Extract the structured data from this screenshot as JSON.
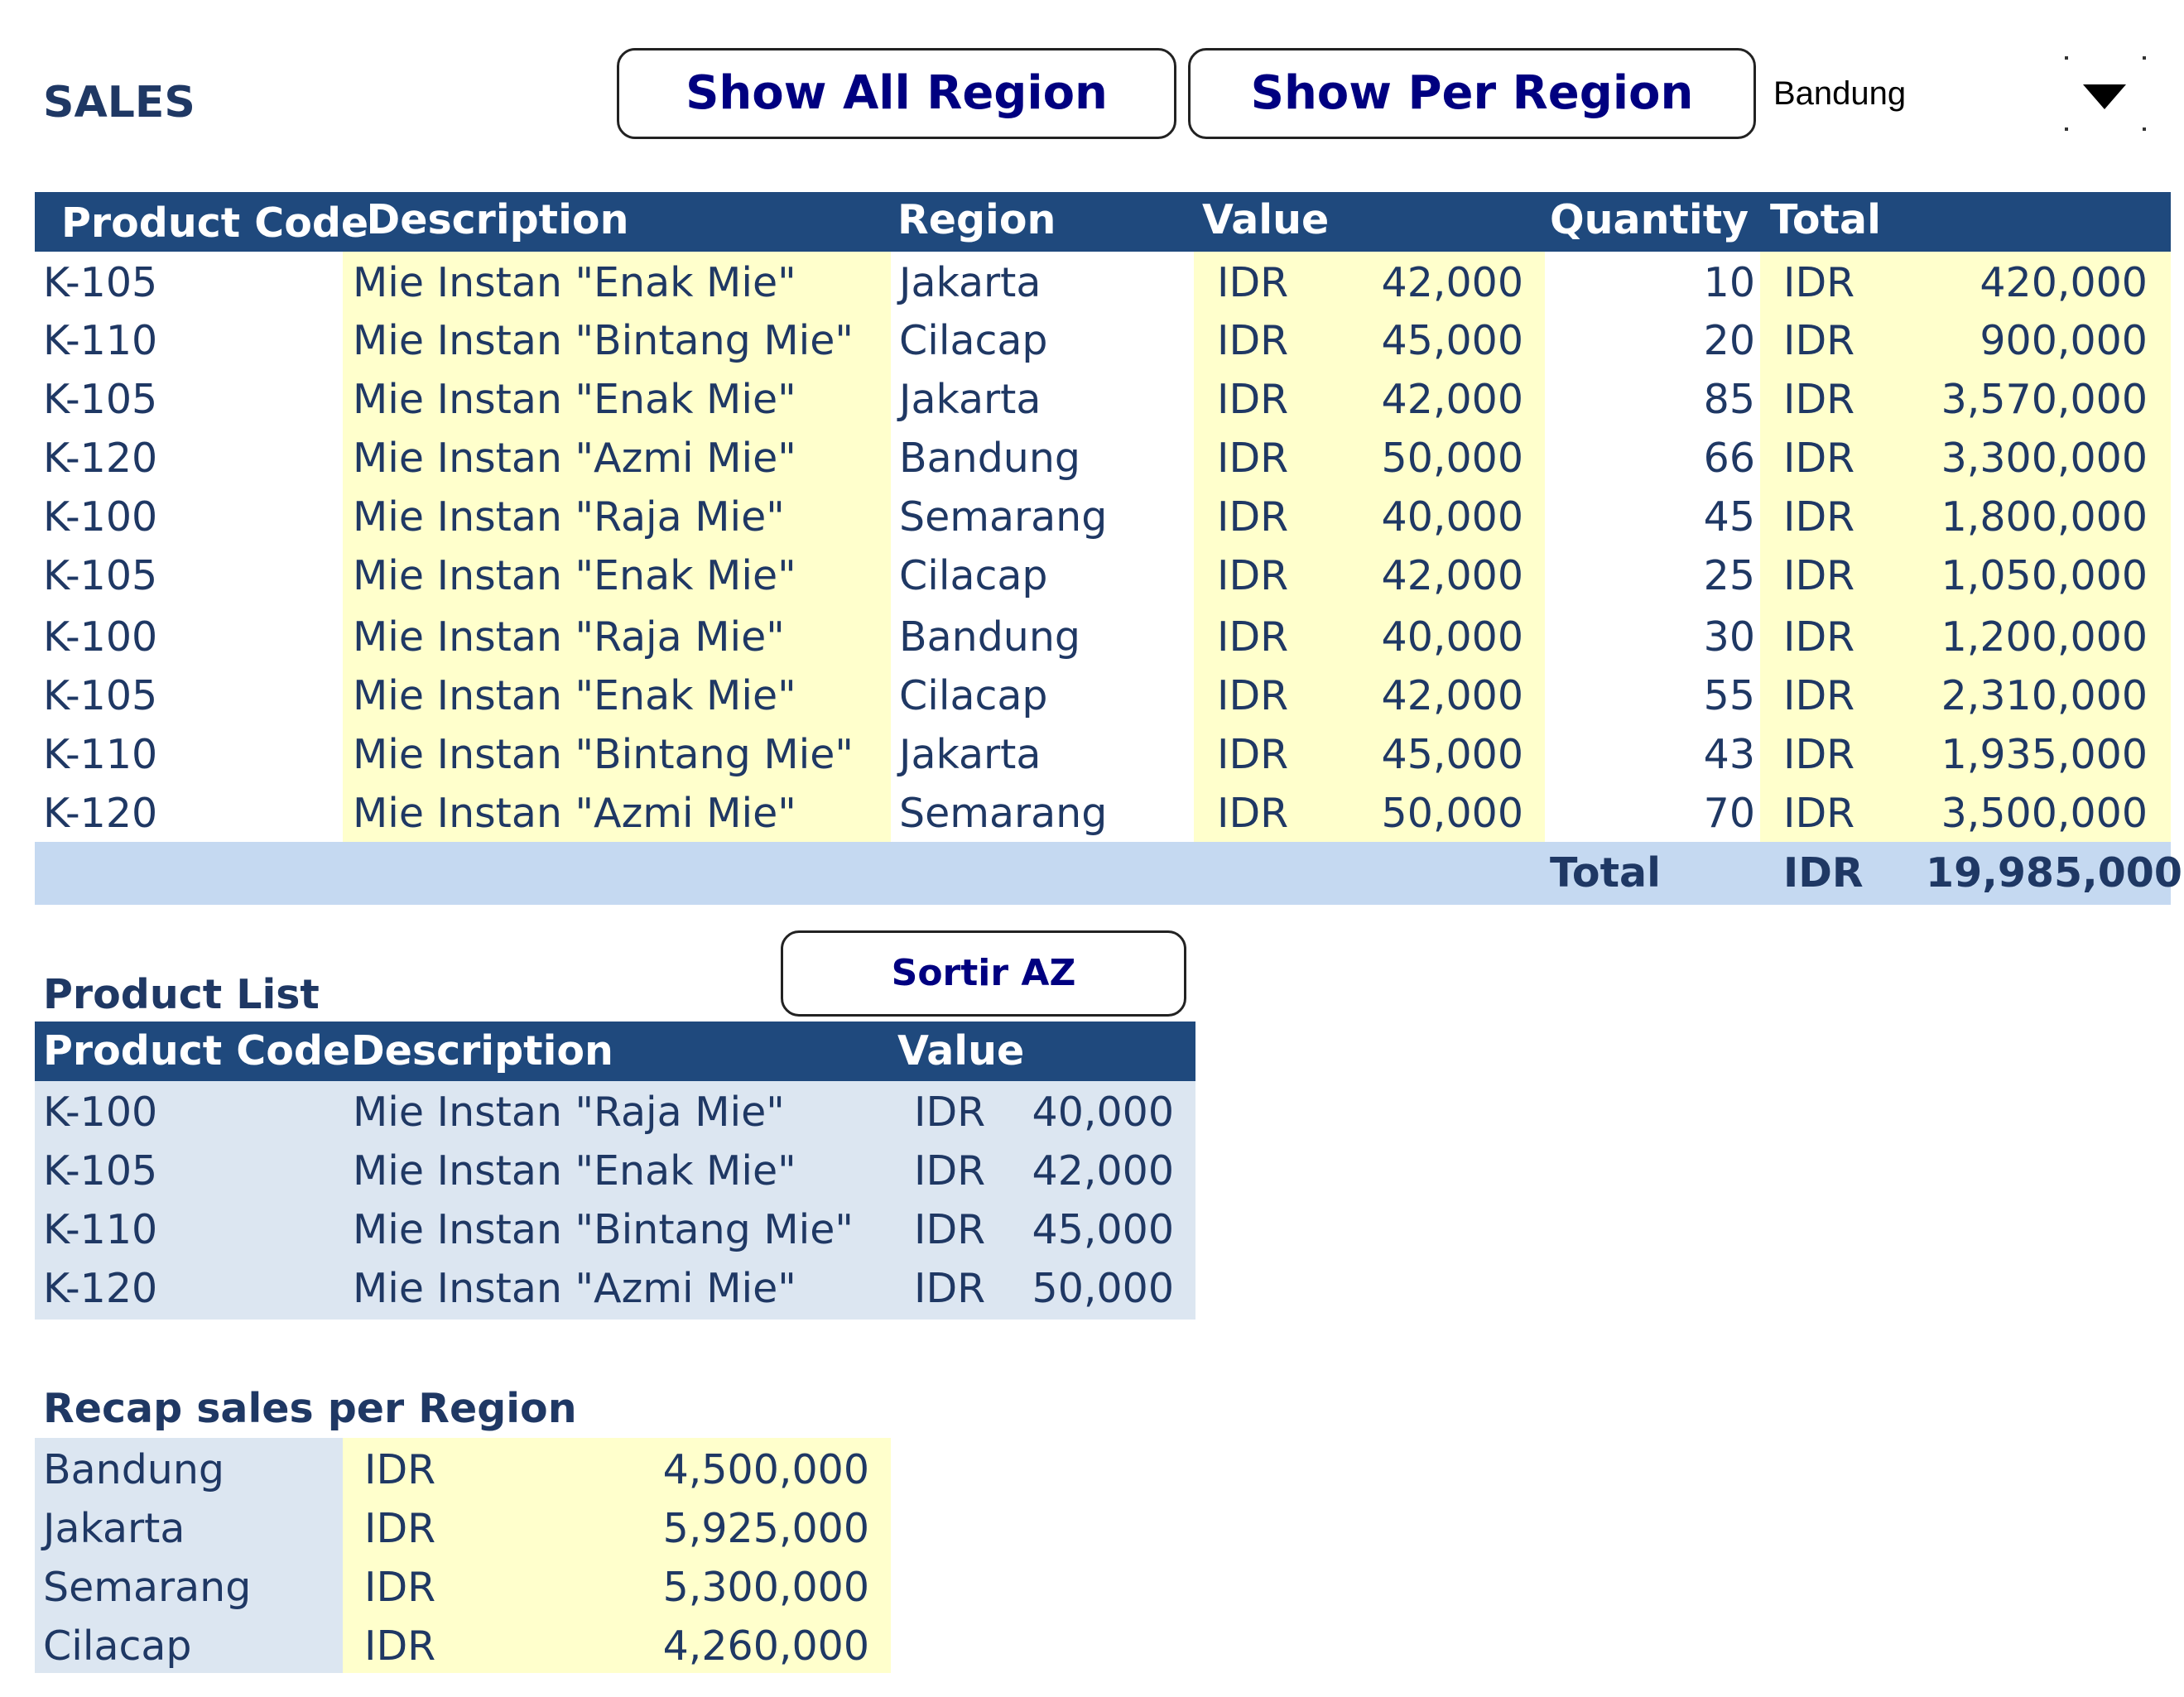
{
  "header": {
    "title": "SALES",
    "show_all_label": "Show All Region",
    "show_per_label": "Show Per Region",
    "region_selected": "Bandung"
  },
  "sales": {
    "columns": [
      "Product Code",
      "Description",
      "Region",
      "Value",
      "Quantity",
      "Total"
    ],
    "rows": [
      {
        "code": "K-105",
        "desc": "Mie Instan \"Enak Mie\"",
        "region": "Jakarta",
        "cur": "IDR",
        "value": "42,000",
        "qty": "10",
        "tcur": "IDR",
        "total": "420,000"
      },
      {
        "code": "K-110",
        "desc": "Mie Instan \"Bintang Mie\"",
        "region": "Cilacap",
        "cur": "IDR",
        "value": "45,000",
        "qty": "20",
        "tcur": "IDR",
        "total": "900,000"
      },
      {
        "code": "K-105",
        "desc": "Mie Instan \"Enak Mie\"",
        "region": "Jakarta",
        "cur": "IDR",
        "value": "42,000",
        "qty": "85",
        "tcur": "IDR",
        "total": "3,570,000"
      },
      {
        "code": "K-120",
        "desc": "Mie Instan \"Azmi Mie\"",
        "region": "Bandung",
        "cur": "IDR",
        "value": "50,000",
        "qty": "66",
        "tcur": "IDR",
        "total": "3,300,000"
      },
      {
        "code": "K-100",
        "desc": "Mie Instan \"Raja Mie\"",
        "region": "Semarang",
        "cur": "IDR",
        "value": "40,000",
        "qty": "45",
        "tcur": "IDR",
        "total": "1,800,000"
      },
      {
        "code": "K-105",
        "desc": "Mie Instan \"Enak Mie\"",
        "region": "Cilacap",
        "cur": "IDR",
        "value": "42,000",
        "qty": "25",
        "tcur": "IDR",
        "total": "1,050,000"
      },
      {
        "code": "K-100",
        "desc": "Mie Instan \"Raja Mie\"",
        "region": "Bandung",
        "cur": "IDR",
        "value": "40,000",
        "qty": "30",
        "tcur": "IDR",
        "total": "1,200,000"
      },
      {
        "code": "K-105",
        "desc": "Mie Instan \"Enak Mie\"",
        "region": "Cilacap",
        "cur": "IDR",
        "value": "42,000",
        "qty": "55",
        "tcur": "IDR",
        "total": "2,310,000"
      },
      {
        "code": "K-110",
        "desc": "Mie Instan \"Bintang Mie\"",
        "region": "Jakarta",
        "cur": "IDR",
        "value": "45,000",
        "qty": "43",
        "tcur": "IDR",
        "total": "1,935,000"
      },
      {
        "code": "K-120",
        "desc": "Mie Instan \"Azmi Mie\"",
        "region": "Semarang",
        "cur": "IDR",
        "value": "50,000",
        "qty": "70",
        "tcur": "IDR",
        "total": "3,500,000"
      }
    ],
    "total_label": "Total",
    "total_cur": "IDR",
    "total_value": "19,985,000"
  },
  "product_list": {
    "title": "Product List",
    "sort_label": "Sortir AZ",
    "columns": [
      "Product Code",
      "Description",
      "Value"
    ],
    "rows": [
      {
        "code": "K-100",
        "desc": "Mie Instan \"Raja Mie\"",
        "cur": "IDR",
        "value": "40,000"
      },
      {
        "code": "K-105",
        "desc": "Mie Instan \"Enak Mie\"",
        "cur": "IDR",
        "value": "42,000"
      },
      {
        "code": "K-110",
        "desc": "Mie Instan \"Bintang Mie\"",
        "cur": "IDR",
        "value": "45,000"
      },
      {
        "code": "K-120",
        "desc": "Mie Instan \"Azmi Mie\"",
        "cur": "IDR",
        "value": "50,000"
      }
    ]
  },
  "recap": {
    "title": "Recap sales per Region",
    "rows": [
      {
        "region": "Bandung",
        "cur": "IDR",
        "value": "4,500,000"
      },
      {
        "region": "Jakarta",
        "cur": "IDR",
        "value": "5,925,000"
      },
      {
        "region": "Semarang",
        "cur": "IDR",
        "value": "5,300,000"
      },
      {
        "region": "Cilacap",
        "cur": "IDR",
        "value": "4,260,000"
      }
    ]
  },
  "colors": {
    "header_bg": "#1F497D",
    "text": "#1F3864",
    "yellow": "#FFFFCC",
    "light_blue": "#DCE6F1",
    "total_bar": "#C5D9F1",
    "button_text": "#000080"
  }
}
